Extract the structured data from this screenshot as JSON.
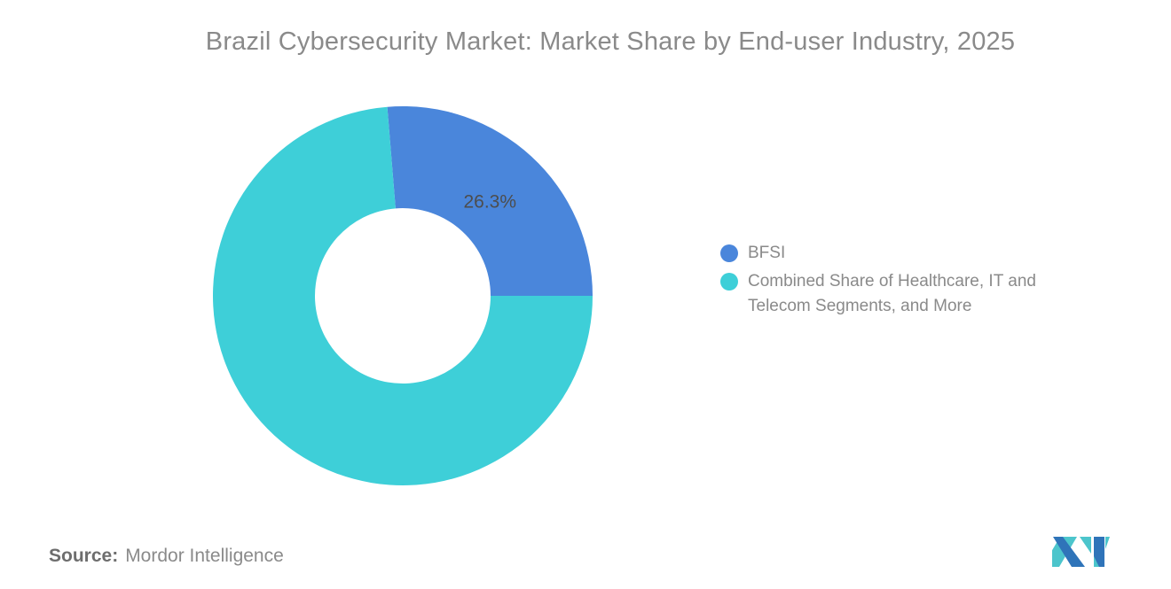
{
  "title": "Brazil Cybersecurity Market: Market Share by End-user Industry, 2025",
  "donut_label": "26.3%",
  "legend": {
    "items": [
      {
        "label": "BFSI",
        "color": "#4a86db"
      },
      {
        "label": "Combined Share of Healthcare, IT and Telecom Segments, and More",
        "color": "#3ecfd8"
      }
    ]
  },
  "source": {
    "label": "Source:",
    "value": "Mordor Intelligence"
  },
  "logo": {
    "name": "mordor-intelligence-logo",
    "blue": "#2f74b9",
    "teal": "#4cc5cc"
  },
  "colors": {
    "slice_bfsi": "#4a86db",
    "slice_combined": "#3ecfd8",
    "title_text": "#8a8a8a",
    "legend_text": "#8a8a8a",
    "slice_label_text": "#4d4d4d",
    "background": "#ffffff"
  },
  "chart_data": {
    "type": "pie",
    "donut": true,
    "title": "Brazil Cybersecurity Market: Market Share by End-user Industry, 2025",
    "categories": [
      "BFSI",
      "Combined Share of Healthcare, IT and Telecom Segments, and More"
    ],
    "values": [
      26.3,
      73.7
    ],
    "data_labels": [
      "26.3%",
      ""
    ],
    "colors": [
      "#4a86db",
      "#3ecfd8"
    ],
    "start_angle_deg": -4.68,
    "legend_position": "right",
    "inner_radius_ratio": 0.46
  }
}
